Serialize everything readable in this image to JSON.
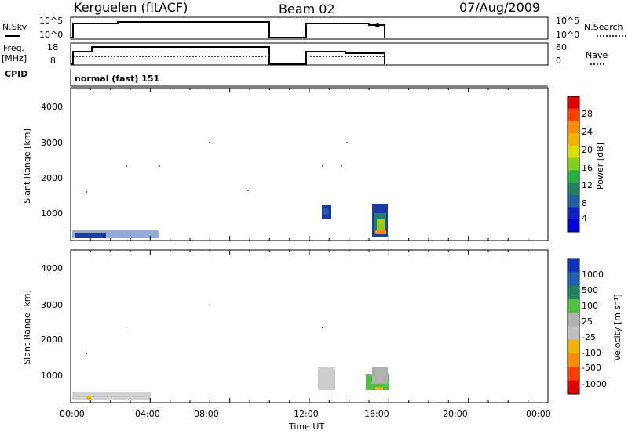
{
  "header": {
    "station": "Kerguelen (fitACF)",
    "beam": "Beam 02",
    "date": "07/Aug/2009"
  },
  "top_panels": {
    "nsky_label": "N.Sky",
    "nsearch_label": "N.Search",
    "nsky_ticks": [
      "10^5",
      "10^0"
    ],
    "nsearch_ticks": [
      "10^5",
      "10^0"
    ],
    "freq_label_1": "Freq.",
    "freq_label_2": "[MHz]",
    "freq_ticks": [
      "18",
      "8"
    ],
    "nave_label": "Nave",
    "nave_ticks": [
      "60",
      "0"
    ],
    "cpid_label": "CPID",
    "cpid_value": "normal (fast) 151"
  },
  "chart_data": [
    {
      "type": "heatmap",
      "name": "power",
      "ylabel": "Slant Range [km]",
      "ylim": [
        180,
        4500
      ],
      "yticks": [
        "4000",
        "3000",
        "2000",
        "1000"
      ],
      "colorbar_label": "Power [dB]",
      "colorbar_ticks": [
        "28",
        "24",
        "20",
        "16",
        "12",
        "8",
        "4"
      ],
      "colorbar_colors": [
        "#e00000",
        "#ff4000",
        "#ff8c00",
        "#f0b400",
        "#d8e000",
        "#80d020",
        "#20b040",
        "#208060",
        "#2060a0",
        "#1020c0",
        "#0000e0"
      ],
      "data_regions": [
        {
          "t": [
            0.0,
            3.5
          ],
          "r": [
            200,
            600
          ],
          "value_db": 6
        },
        {
          "t": [
            12.6,
            13.0
          ],
          "r": [
            700,
            1100
          ],
          "value_db": 6
        },
        {
          "t": [
            15.0,
            15.9
          ],
          "r": [
            200,
            1250
          ],
          "value_db": 10
        }
      ]
    },
    {
      "type": "heatmap",
      "name": "velocity",
      "ylabel": "Slant Range [km]",
      "ylim": [
        180,
        4500
      ],
      "yticks": [
        "4000",
        "3000",
        "2000",
        "1000"
      ],
      "xlabel": "Time UT",
      "xticks": [
        "00:00",
        "04:00",
        "08:00",
        "12:00",
        "16:00",
        "20:00",
        "00:00"
      ],
      "colorbar_label": "Velocity [m s⁻¹]",
      "colorbar_ticks": [
        "1000",
        "500",
        "100",
        "25",
        "-25",
        "-100",
        "-500",
        "-1000"
      ],
      "colorbar_colors": [
        "#1030c0",
        "#2060b0",
        "#208060",
        "#50c040",
        "#b0b0b0",
        "#c0c0c0",
        "#f0b400",
        "#ff8c00",
        "#ff4000",
        "#e00000"
      ],
      "data_regions": [
        {
          "t": [
            13.0,
            14.2
          ],
          "r": [
            500,
            1100
          ],
          "value_ms": 0
        },
        {
          "t": [
            15.0,
            15.9
          ],
          "r": [
            300,
            1200
          ],
          "value_ms": 50
        }
      ]
    }
  ]
}
